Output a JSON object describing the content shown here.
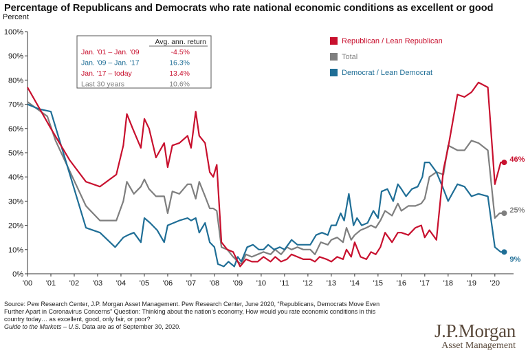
{
  "title": "Percentage of Republicans and Democrats who rate national economic conditions as excellent or good",
  "colors": {
    "republican": "#c8102e",
    "total": "#7f7f7f",
    "democrat": "#1f6e96",
    "grid": "#d0d0d0",
    "axis": "#333333"
  },
  "chart_data": {
    "type": "line",
    "ylabel": "Percent",
    "ylim": [
      0,
      100
    ],
    "yticks": [
      0,
      10,
      20,
      30,
      40,
      50,
      60,
      70,
      80,
      90,
      100
    ],
    "ytick_labels": [
      "0%",
      "10%",
      "20%",
      "30%",
      "40%",
      "50%",
      "60%",
      "70%",
      "80%",
      "90%",
      "100%"
    ],
    "xlim": [
      2000,
      2020.8
    ],
    "xticks": [
      2000,
      2001,
      2002,
      2003,
      2004,
      2005,
      2006,
      2007,
      2008,
      2009,
      2010,
      2011,
      2012,
      2013,
      2014,
      2015,
      2016,
      2017,
      2018,
      2019,
      2020
    ],
    "xtick_labels": [
      "'00",
      "'01",
      "'02",
      "'03",
      "'04",
      "'05",
      "'06",
      "'07",
      "'08",
      "'09",
      "'10",
      "'11",
      "'12",
      "'13",
      "'14",
      "'15",
      "'16",
      "'17",
      "'18",
      "'19",
      "'20"
    ],
    "grid": false,
    "series": [
      {
        "name": "Republican / Lean Republican",
        "color_key": "republican",
        "end_label": "46%",
        "x": [
          2000,
          2001,
          2001.8,
          2002.5,
          2003.1,
          2003.8,
          2004.1,
          2004.25,
          2004.5,
          2004.85,
          2005.0,
          2005.2,
          2005.5,
          2005.85,
          2006.0,
          2006.2,
          2006.5,
          2006.85,
          2007.0,
          2007.2,
          2007.35,
          2007.6,
          2007.8,
          2007.95,
          2008.1,
          2008.3,
          2008.55,
          2008.8,
          2009.0,
          2009.1,
          2009.35,
          2009.6,
          2009.85,
          2010.1,
          2010.4,
          2010.6,
          2010.85,
          2011.1,
          2011.3,
          2011.55,
          2011.8,
          2012.1,
          2012.3,
          2012.5,
          2012.8,
          2013.0,
          2013.25,
          2013.5,
          2013.65,
          2013.85,
          2014.0,
          2014.25,
          2014.5,
          2014.7,
          2014.9,
          2015.1,
          2015.3,
          2015.6,
          2015.85,
          2016.0,
          2016.3,
          2016.6,
          2016.85,
          2017.0,
          2017.2,
          2017.5,
          2017.8,
          2018.0,
          2018.4,
          2018.7,
          2019.0,
          2019.3,
          2019.7,
          2020.0,
          2020.25,
          2020.4
        ],
        "values": [
          77,
          60,
          47,
          38,
          36,
          41,
          53,
          66,
          60,
          52,
          64,
          60,
          48,
          54,
          44,
          53,
          54,
          57,
          52,
          67,
          57,
          54,
          42,
          40,
          45,
          13,
          10,
          9,
          5,
          3,
          6,
          5,
          5,
          7,
          5,
          7,
          5,
          6,
          8,
          7,
          6,
          6,
          5,
          7,
          6,
          5,
          7,
          6,
          10,
          7,
          13,
          7,
          6,
          9,
          8,
          11,
          17,
          13,
          17,
          17,
          16,
          19,
          20,
          15,
          18,
          14,
          43,
          52,
          74,
          73,
          75,
          79,
          77,
          37,
          46,
          46
        ]
      },
      {
        "name": "Total",
        "color_key": "total",
        "end_label": "25%",
        "x": [
          2000,
          2000.85,
          2001.2,
          2002.5,
          2003.1,
          2003.8,
          2004.1,
          2004.25,
          2004.55,
          2004.85,
          2005.0,
          2005.2,
          2005.5,
          2005.85,
          2006.0,
          2006.2,
          2006.5,
          2006.85,
          2007.0,
          2007.2,
          2007.35,
          2007.6,
          2007.8,
          2007.95,
          2008.1,
          2008.3,
          2008.55,
          2008.8,
          2009.0,
          2009.15,
          2009.35,
          2009.6,
          2009.85,
          2010.1,
          2010.4,
          2010.6,
          2010.85,
          2011.1,
          2011.3,
          2011.55,
          2011.8,
          2012.1,
          2012.3,
          2012.55,
          2012.85,
          2013.0,
          2013.25,
          2013.5,
          2013.65,
          2013.85,
          2014.0,
          2014.25,
          2014.5,
          2014.7,
          2014.9,
          2015.1,
          2015.3,
          2015.6,
          2015.85,
          2016.0,
          2016.3,
          2016.6,
          2016.85,
          2017.0,
          2017.2,
          2017.5,
          2017.8,
          2018.0,
          2018.4,
          2018.7,
          2019.0,
          2019.3,
          2019.7,
          2020.0,
          2020.2,
          2020.4
        ],
        "values": [
          71,
          65,
          55,
          28,
          22,
          22,
          30,
          38,
          33,
          36,
          39,
          35,
          32,
          32,
          25,
          34,
          33,
          37,
          37,
          31,
          38,
          32,
          27,
          27,
          26,
          11,
          10,
          7,
          5,
          4,
          8,
          7,
          8,
          9,
          8,
          10,
          8,
          11,
          10,
          11,
          10,
          10,
          8,
          13,
          12,
          14,
          15,
          13,
          19,
          14,
          16,
          18,
          19,
          20,
          19,
          22,
          26,
          24,
          29,
          26,
          28,
          28,
          29,
          31,
          40,
          42,
          41,
          53,
          51,
          51,
          55,
          54,
          51,
          23,
          25,
          25
        ]
      },
      {
        "name": "Democrat / Lean Democrat",
        "color_key": "democrat",
        "end_label": "9%",
        "x": [
          2000,
          2000.5,
          2001.0,
          2002.5,
          2003.1,
          2003.75,
          2004.1,
          2004.3,
          2004.55,
          2004.85,
          2005.0,
          2005.25,
          2005.55,
          2005.85,
          2006.0,
          2006.25,
          2006.5,
          2006.85,
          2007.0,
          2007.2,
          2007.35,
          2007.6,
          2007.8,
          2008.0,
          2008.15,
          2008.4,
          2008.6,
          2008.85,
          2009.0,
          2009.15,
          2009.4,
          2009.65,
          2009.9,
          2010.1,
          2010.3,
          2010.55,
          2010.8,
          2011.0,
          2011.3,
          2011.55,
          2011.8,
          2012.1,
          2012.35,
          2012.6,
          2012.85,
          2013.0,
          2013.2,
          2013.4,
          2013.55,
          2013.75,
          2013.95,
          2014.1,
          2014.3,
          2014.55,
          2014.8,
          2015.0,
          2015.15,
          2015.4,
          2015.65,
          2015.85,
          2016.0,
          2016.2,
          2016.45,
          2016.7,
          2016.9,
          2017.0,
          2017.2,
          2017.5,
          2017.8,
          2018.0,
          2018.4,
          2018.7,
          2019.0,
          2019.3,
          2019.7,
          2020.0,
          2020.25,
          2020.4
        ],
        "values": [
          70,
          68,
          67,
          19,
          17,
          11,
          15,
          16,
          17,
          13,
          23,
          21,
          18,
          13,
          20,
          21,
          22,
          23,
          22,
          23,
          17,
          21,
          13,
          11,
          4,
          3,
          5,
          3,
          7,
          5,
          11,
          12,
          10,
          10,
          12,
          10,
          11,
          10,
          14,
          12,
          12,
          12,
          16,
          17,
          16,
          20,
          20,
          25,
          22,
          33,
          20,
          23,
          20,
          21,
          26,
          23,
          34,
          35,
          30,
          37,
          35,
          32,
          35,
          36,
          40,
          46,
          46,
          42,
          35,
          30,
          37,
          36,
          32,
          33,
          32,
          11,
          9,
          9
        ]
      }
    ],
    "legend": {
      "position": "right",
      "entries": [
        "Republican / Lean Republican",
        "Total",
        "Democrat / Lean Democrat"
      ]
    },
    "table": {
      "header": "Avg. ann. return",
      "rows": [
        {
          "label": "Jan. '01 – Jan. '09",
          "value": "-4.5%",
          "color_key": "republican"
        },
        {
          "label": "Jan. '09 – Jan. '17",
          "value": "16.3%",
          "color_key": "democrat"
        },
        {
          "label": "Jan. '17 – today",
          "value": "13.4%",
          "color_key": "republican"
        },
        {
          "label": "Last 30 years",
          "value": "10.6%",
          "color_key": "total"
        }
      ]
    }
  },
  "footnote": {
    "line1": "Source: Pew Research Center, J.P. Morgan Asset Management. Pew Research Center, June 2020, “Republicans, Democrats Move Even Further Apart in Coronavirus Concerns” Question: Thinking about the nation’s economy, How would you rate economic conditions in this country today… as excellent, good, only fair, or poor?",
    "line2_italic": "Guide to the Markets – U.S.",
    "line2_rest": " Data are as of September 30, 2020."
  },
  "logo": {
    "brand": "J.P.Morgan",
    "sub": "Asset Management"
  }
}
